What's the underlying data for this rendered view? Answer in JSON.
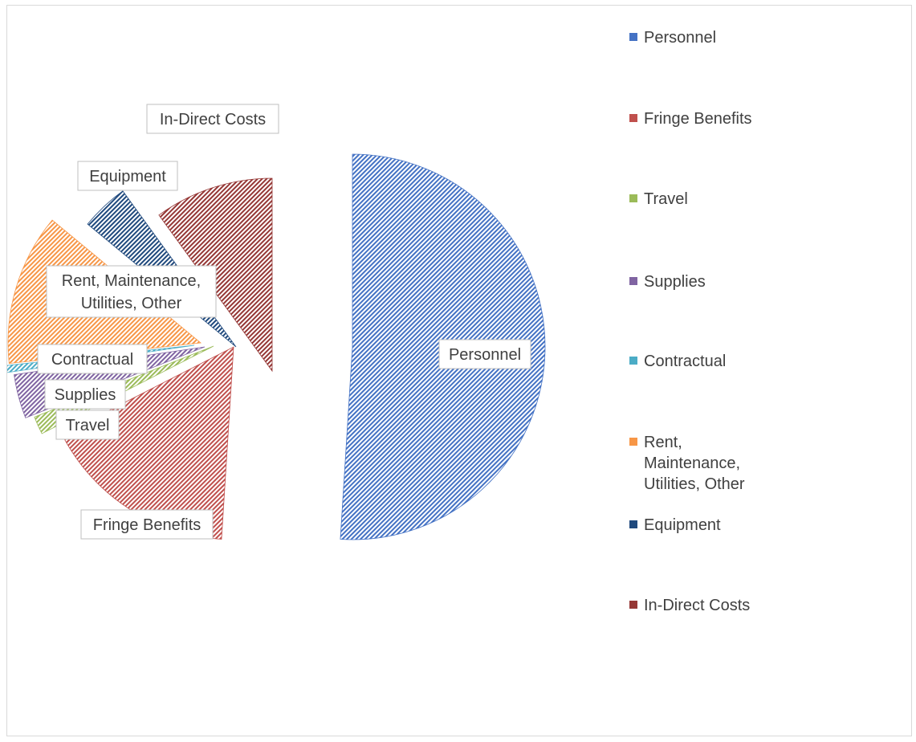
{
  "chart_data": {
    "type": "pie",
    "exploded": true,
    "fill_pattern": "diagonal-hatch",
    "legend_position": "right",
    "series": [
      {
        "name": "Personnel",
        "value": 51.0,
        "color": "#4472C4"
      },
      {
        "name": "Fringe Benefits",
        "value": 16.5,
        "color": "#C0504D"
      },
      {
        "name": "Travel",
        "value": 1.5,
        "color": "#9BBB59"
      },
      {
        "name": "Supplies",
        "value": 3.7,
        "color": "#8064A2"
      },
      {
        "name": "Contractual",
        "value": 0.6,
        "color": "#4BACC6"
      },
      {
        "name": "Rent, Maintenance, Utilities, Other",
        "value": 12.7,
        "color": "#F79646"
      },
      {
        "name": "Equipment",
        "value": 4.0,
        "color": "#1F497D"
      },
      {
        "name": "In-Direct Costs",
        "value": 10.0,
        "color": "#953735"
      }
    ]
  },
  "labels": {
    "personnel": "Personnel",
    "fringe": "Fringe Benefits",
    "travel": "Travel",
    "supplies": "Supplies",
    "contractual": "Contractual",
    "rent_line1": "Rent, Maintenance,",
    "rent_line2": "Utilities, Other",
    "equipment": "Equipment",
    "indirect": "In-Direct Costs"
  },
  "legend": {
    "items": [
      {
        "label": "Personnel",
        "color": "#4472C4"
      },
      {
        "label": "Fringe Benefits",
        "color": "#C0504D"
      },
      {
        "label": "Travel",
        "color": "#9BBB59"
      },
      {
        "label": "Supplies",
        "color": "#8064A2"
      },
      {
        "label": "Contractual",
        "color": "#4BACC6"
      },
      {
        "label": "Rent, Maintenance, Utilities, Other",
        "color": "#F79646"
      },
      {
        "label": "Equipment",
        "color": "#1F497D"
      },
      {
        "label": "In-Direct Costs",
        "color": "#953735"
      }
    ]
  }
}
